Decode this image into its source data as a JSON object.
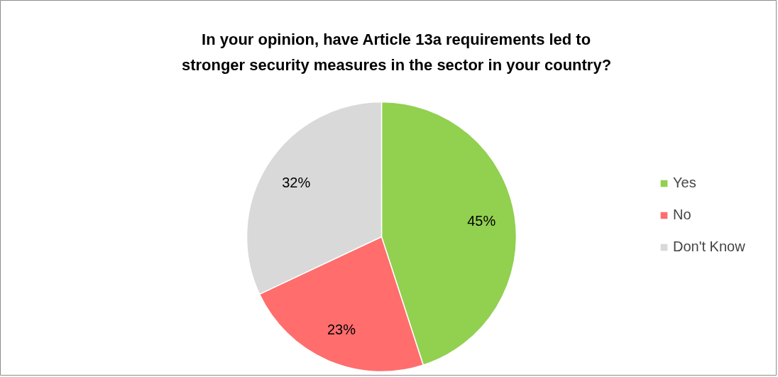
{
  "chart_data": {
    "type": "pie",
    "title": "In your opinion, have Article 13a requirements led to stronger security measures in the sector in your country?",
    "categories": [
      "Yes",
      "No",
      "Don't Know"
    ],
    "values": [
      45,
      23,
      32
    ],
    "colors": [
      "#92d050",
      "#ff6d6d",
      "#d9d9d9"
    ],
    "value_labels": [
      "45%",
      "23%",
      "32%"
    ],
    "legend": "right"
  }
}
